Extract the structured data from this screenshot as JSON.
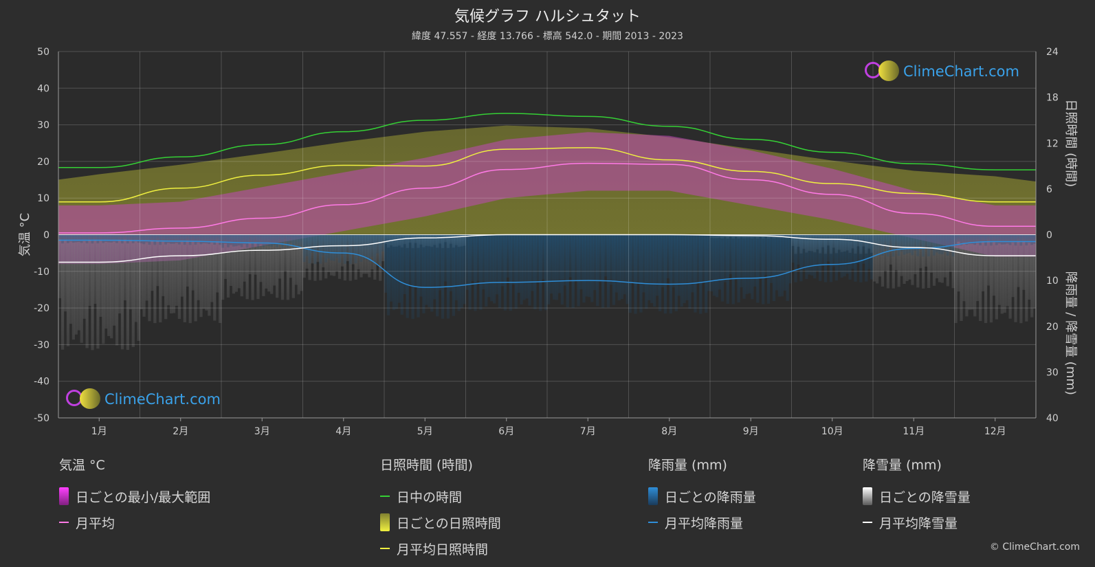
{
  "title": "気候グラフ ハルシュタット",
  "subtitle": "緯度 47.557 - 経度 13.766 - 標高 542.0 - 期間 2013 - 2023",
  "logo_text": "ClimeChart.com",
  "copyright": "© ClimeChart.com",
  "colors": {
    "background": "#2d2d2d",
    "daylight": "#35d035",
    "sunshine": "#f0f040",
    "temp_avg": "#ff7ae6",
    "temp_range": "#e040e0",
    "rain": "#2f8ed8",
    "snow": "#ffffff"
  },
  "chart_data": {
    "type": "line",
    "categories": [
      "1月",
      "2月",
      "3月",
      "4月",
      "5月",
      "6月",
      "7月",
      "8月",
      "9月",
      "10月",
      "11月",
      "12月"
    ],
    "left_axis": {
      "label": "気温 °C",
      "range": [
        -50,
        50
      ],
      "ticks": [
        "50",
        "40",
        "30",
        "20",
        "10",
        "0",
        "-10",
        "-20",
        "-30",
        "-40",
        "-50"
      ]
    },
    "right_axis_top": {
      "label": "日照時間 (時間)",
      "range": [
        0,
        24
      ],
      "ticks": [
        "24",
        "18",
        "12",
        "6",
        "0"
      ]
    },
    "right_axis_bottom": {
      "label": "降雨量 / 降雪量 (mm)",
      "range": [
        0,
        40
      ],
      "ticks": [
        "0",
        "10",
        "20",
        "30",
        "40"
      ]
    },
    "grid": true,
    "series": [
      {
        "name": "日中の時間",
        "unit": "hours",
        "values": [
          8.8,
          10.2,
          11.8,
          13.5,
          15.0,
          15.9,
          15.5,
          14.2,
          12.5,
          10.8,
          9.3,
          8.5
        ]
      },
      {
        "name": "月平均日照時間",
        "unit": "hours",
        "values": [
          4.3,
          6.1,
          7.8,
          9.1,
          9.0,
          11.2,
          11.4,
          9.8,
          8.3,
          6.7,
          5.4,
          4.3
        ]
      },
      {
        "name": "月平均",
        "unit": "°C",
        "values": [
          0.5,
          1.8,
          4.5,
          8.2,
          12.7,
          17.8,
          19.5,
          19.2,
          15.0,
          11.0,
          5.8,
          2.3
        ]
      },
      {
        "name": "月平均降雨量",
        "unit": "mm",
        "values": [
          1.2,
          1.4,
          1.8,
          4.0,
          11.5,
          10.4,
          10.0,
          10.8,
          9.5,
          6.5,
          3.0,
          1.5
        ]
      },
      {
        "name": "月平均降雪量",
        "unit": "mm",
        "values": [
          6.0,
          4.6,
          3.4,
          2.4,
          0.7,
          0.0,
          0.0,
          0.0,
          0.2,
          1.0,
          2.8,
          4.6
        ]
      }
    ],
    "daily_temp_range": {
      "min": [
        -8,
        -7,
        -3,
        1,
        5,
        10,
        12,
        12,
        8,
        4,
        -1,
        -6
      ],
      "max": [
        8,
        9,
        13,
        17,
        21,
        26,
        28,
        27,
        23,
        18,
        12,
        8
      ]
    }
  },
  "legend": {
    "groups": [
      {
        "header": "気温 °C",
        "items": [
          {
            "label": "日ごとの最小/最大範囲",
            "kind": "box"
          },
          {
            "label": "月平均",
            "kind": "line"
          }
        ]
      },
      {
        "header": "日照時間 (時間)",
        "items": [
          {
            "label": "日中の時間",
            "kind": "line"
          },
          {
            "label": "日ごとの日照時間",
            "kind": "box"
          },
          {
            "label": "月平均日照時間",
            "kind": "line"
          }
        ]
      },
      {
        "header": "降雨量 (mm)",
        "items": [
          {
            "label": "日ごとの降雨量",
            "kind": "box"
          },
          {
            "label": "月平均降雨量",
            "kind": "line"
          }
        ]
      },
      {
        "header": "降雪量 (mm)",
        "items": [
          {
            "label": "日ごとの降雪量",
            "kind": "box"
          },
          {
            "label": "月平均降雪量",
            "kind": "line"
          }
        ]
      }
    ]
  }
}
